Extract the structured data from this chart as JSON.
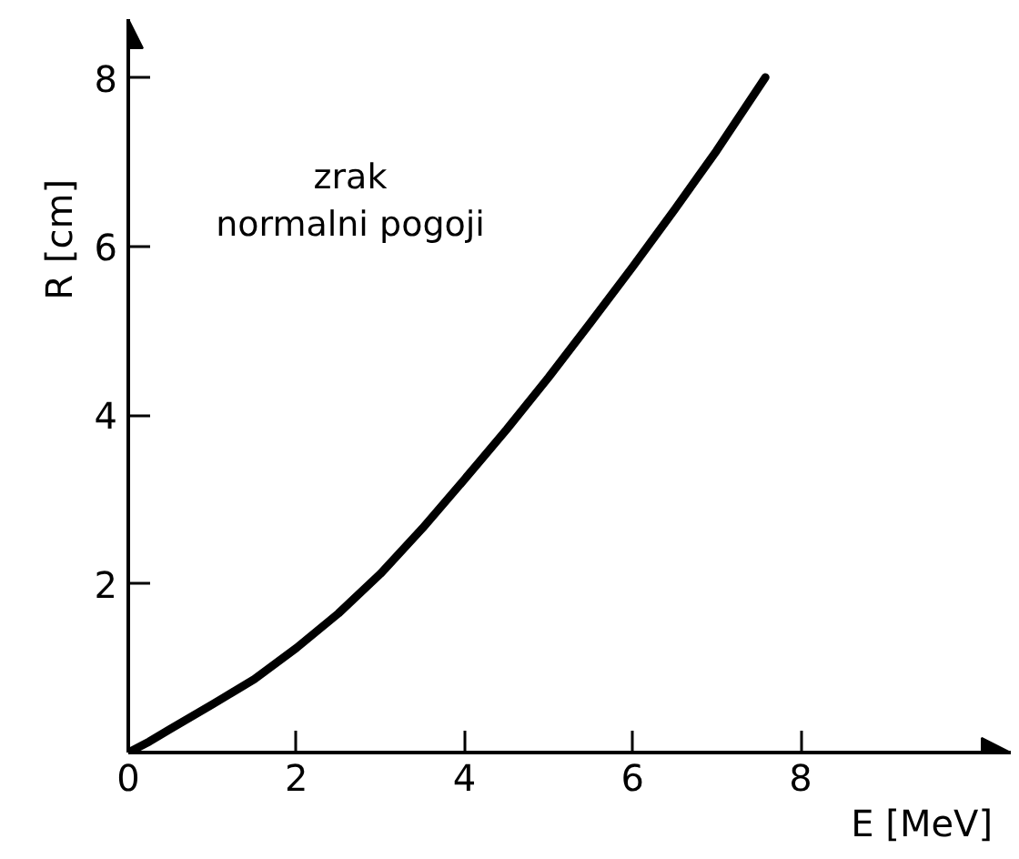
{
  "chart_data": {
    "type": "line",
    "xlabel": "E [MeV]",
    "ylabel": "R [cm]",
    "annotations": [
      "zrak\nnormalni pogoji"
    ],
    "x": [
      0,
      0.25,
      0.5,
      1,
      1.5,
      2,
      2.5,
      3,
      3.5,
      4,
      4.5,
      5,
      5.5,
      6,
      6.5,
      7,
      7.58
    ],
    "series": [
      {
        "color": "#000000",
        "values": [
          0,
          0.13,
          0.28,
          0.57,
          0.87,
          1.24,
          1.65,
          2.12,
          2.66,
          3.24,
          3.83,
          4.45,
          5.1,
          5.76,
          6.44,
          7.14,
          8.01
        ]
      }
    ],
    "xlim": [
      0,
      10.5
    ],
    "ylim": [
      0,
      8.7
    ],
    "xticks": [
      0,
      2,
      4,
      6,
      8
    ],
    "yticks": [
      2,
      4,
      6,
      8
    ],
    "grid": false
  }
}
